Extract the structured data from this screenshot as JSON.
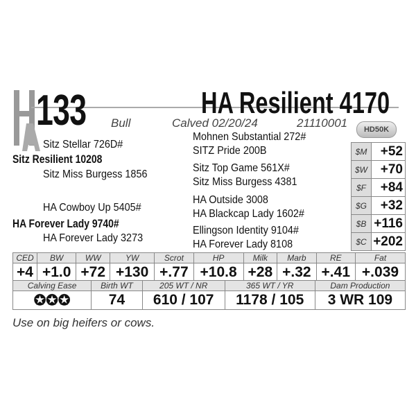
{
  "lot": "133",
  "logo": "HA",
  "name": "HA Resilient 4170",
  "sex": "Bull",
  "calved": "Calved 02/20/24",
  "reg": "21110001",
  "badge": "HD50K",
  "pedigree": {
    "sire": "Sitz Resilient 10208",
    "sire_sire": "Sitz Stellar 726D#",
    "sire_dam": "Sitz Miss Burgess 1856",
    "dam": "HA Forever Lady 9740#",
    "dam_sire": "HA Cowboy Up 5405#",
    "dam_dam": "HA Forever Lady 3273",
    "ggp": [
      "Mohnen Substantial 272#",
      "SITZ Pride 200B",
      "Sitz Top Game 561X#",
      "Sitz Miss Burgess 4381",
      "HA Outside 3008",
      "HA Blackcap Lady 1602#",
      "Ellingson Identity 9104#",
      "HA Forever Lady 8108"
    ]
  },
  "indexes": [
    {
      "label": "$M",
      "value": "+52"
    },
    {
      "label": "$W",
      "value": "+70"
    },
    {
      "label": "$F",
      "value": "+84"
    },
    {
      "label": "$G",
      "value": "+32"
    },
    {
      "label": "$B",
      "value": "+116"
    },
    {
      "label": "$C",
      "value": "+202"
    }
  ],
  "epd_headers": [
    "CED",
    "BW",
    "WW",
    "YW",
    "Scrot",
    "HP",
    "Milk",
    "Marb",
    "RE",
    "Fat"
  ],
  "epd_values": [
    "+4",
    "+1.0",
    "+72",
    "+130",
    "+.77",
    "+10.8",
    "+28",
    "+.32",
    "+.41",
    "+.039"
  ],
  "perf_headers": [
    "Calving Ease",
    "Birth WT",
    "205 WT  /  NR",
    "365 WT  /  YR",
    "Dam Production"
  ],
  "perf_values": [
    "✪✪✪",
    "74",
    "610  /  107",
    "1178  /  105",
    "3 WR 109"
  ],
  "calving_ease_stars": 3,
  "note": "Use on big heifers or cows."
}
